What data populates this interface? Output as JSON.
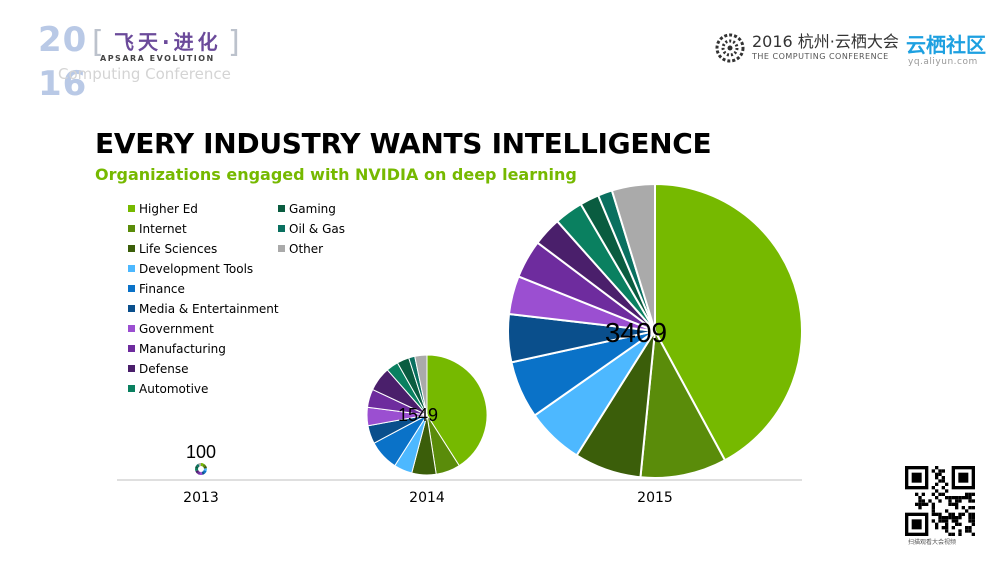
{
  "header": {
    "logo_year_line1": "20",
    "logo_year_line2": "16",
    "logo_sub": "Computing Conference",
    "apsara_cn": "飞天·进化",
    "apsara_en": "APSARA EVOLUTION",
    "conf_title": "2016 杭州·云栖大会",
    "conf_sub": "THE COMPUTING CONFERENCE",
    "yq_title": "云栖社区",
    "yq_url": "yq.aliyun.com"
  },
  "qr_caption": "扫描观看大会视频",
  "chart_data": {
    "type": "pie",
    "title": "EVERY INDUSTRY WANTS INTELLIGENCE",
    "subtitle": "Organizations engaged with NVIDIA on deep learning",
    "legend": [
      {
        "name": "Higher Ed",
        "color": "#76b900"
      },
      {
        "name": "Internet",
        "color": "#5a8c0a"
      },
      {
        "name": "Life Sciences",
        "color": "#3b5e0a"
      },
      {
        "name": "Development Tools",
        "color": "#4db8ff"
      },
      {
        "name": "Finance",
        "color": "#0a72c8"
      },
      {
        "name": "Media & Entertainment",
        "color": "#0a4f8c"
      },
      {
        "name": "Government",
        "color": "#9b4fd1"
      },
      {
        "name": "Manufacturing",
        "color": "#6e2c9e"
      },
      {
        "name": "Defense",
        "color": "#4a1f6b"
      },
      {
        "name": "Automotive",
        "color": "#0a8060"
      },
      {
        "name": "Gaming",
        "color": "#0a5c40"
      },
      {
        "name": "Oil & Gas",
        "color": "#0a7060"
      },
      {
        "name": "Other",
        "color": "#aaaaaa"
      }
    ],
    "pies": [
      {
        "year": "2013",
        "total": "100",
        "values": []
      },
      {
        "year": "2014",
        "total": "1549",
        "values": [
          25,
          4,
          4,
          3,
          5,
          3,
          3,
          3,
          4,
          2,
          2,
          1,
          2
        ]
      },
      {
        "year": "2015",
        "total": "3409",
        "values": [
          40,
          9,
          7,
          6,
          6,
          5,
          4,
          4,
          3,
          3,
          2,
          1.5,
          4.5
        ]
      }
    ]
  }
}
